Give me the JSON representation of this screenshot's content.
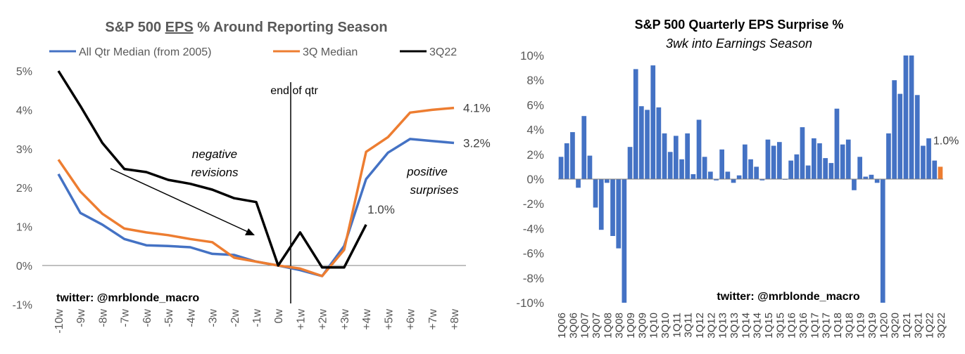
{
  "chart_data": [
    {
      "type": "line",
      "title_parts": [
        "S&P 500 ",
        "EPS",
        " % Around Reporting Season"
      ],
      "categories": [
        "-10w",
        "-9w",
        "-8w",
        "-7w",
        "-6w",
        "-5w",
        "-4w",
        "-3w",
        "-2w",
        "-1w",
        "0w",
        "+1w",
        "+2w",
        "+3w",
        "+4w",
        "+5w",
        "+6w",
        "+7w",
        "+8w"
      ],
      "ylim": [
        -1,
        5
      ],
      "yticks": [
        -1,
        0,
        1,
        2,
        3,
        4,
        5
      ],
      "ytick_labels": [
        "-1%",
        "0%",
        "1%",
        "2%",
        "3%",
        "4%",
        "5%"
      ],
      "grid": false,
      "legend_position": "top",
      "series": [
        {
          "name": "All Qtr Median (from 2005)",
          "color": "#4472C4",
          "values": [
            2.35,
            1.35,
            1.05,
            0.68,
            0.52,
            0.5,
            0.47,
            0.3,
            0.27,
            0.1,
            0.0,
            -0.12,
            -0.27,
            0.5,
            2.22,
            2.9,
            3.25,
            3.2,
            3.15
          ]
        },
        {
          "name": "3Q Median",
          "color": "#ED7D31",
          "values": [
            2.72,
            1.9,
            1.33,
            0.95,
            0.85,
            0.78,
            0.68,
            0.6,
            0.2,
            0.1,
            0.0,
            -0.08,
            -0.27,
            0.4,
            2.92,
            3.3,
            3.93,
            4.0,
            4.05
          ]
        },
        {
          "name": "3Q22",
          "color": "#000000",
          "values": [
            5.0,
            4.1,
            3.15,
            2.48,
            2.4,
            2.2,
            2.1,
            1.95,
            1.73,
            1.63,
            0.0,
            0.85,
            -0.05,
            -0.05,
            1.05,
            null,
            null,
            null,
            null
          ]
        }
      ],
      "end_labels": [
        {
          "text": "4.1%",
          "series": 1
        },
        {
          "text": "3.2%",
          "series": 0
        },
        {
          "text": "1.0%",
          "series": 2
        }
      ],
      "annotations": {
        "end_of_qtr": "end of qtr",
        "negative": [
          "negative",
          "revisions"
        ],
        "positive": [
          "positive",
          "surprises"
        ],
        "credit": "twitter: @mrblonde_macro"
      }
    },
    {
      "type": "bar",
      "title": "S&P 500 Quarterly EPS Surprise %",
      "subtitle": "3wk into Earnings Season",
      "ylim": [
        -10,
        10
      ],
      "yticks": [
        -10,
        -8,
        -6,
        -4,
        -2,
        0,
        2,
        4,
        6,
        8,
        10
      ],
      "ytick_labels": [
        "-10%",
        "-8%",
        "-6%",
        "-4%",
        "-2%",
        "0%",
        "2%",
        "4%",
        "6%",
        "8%",
        "10%"
      ],
      "grid": false,
      "bar_color": "#4472C4",
      "highlight_color": "#ED7D31",
      "xtick_labels": [
        "1Q06",
        "3Q06",
        "1Q07",
        "3Q07",
        "1Q08",
        "3Q08",
        "1Q09",
        "3Q09",
        "1Q10",
        "3Q10",
        "1Q11",
        "3Q11",
        "1Q12",
        "3Q12",
        "1Q13",
        "3Q13",
        "1Q14",
        "3Q14",
        "1Q15",
        "3Q15",
        "1Q16",
        "3Q16",
        "1Q17",
        "3Q17",
        "1Q18",
        "3Q18",
        "1Q19",
        "3Q19",
        "1Q20",
        "3Q20",
        "1Q21",
        "3Q21",
        "1Q22",
        "3Q22"
      ],
      "values": [
        1.8,
        2.9,
        3.8,
        -0.7,
        5.1,
        1.9,
        -2.3,
        -4.1,
        -0.3,
        -4.6,
        -5.6,
        -10,
        2.6,
        8.9,
        5.9,
        5.6,
        9.2,
        5.8,
        3.7,
        2.2,
        3.5,
        1.6,
        3.7,
        0.4,
        4.8,
        1.8,
        0.6,
        -0.1,
        2.4,
        0.6,
        -0.3,
        0.3,
        2.8,
        1.6,
        1.0,
        -0.1,
        3.2,
        2.7,
        3.0,
        -0.05,
        1.5,
        2.0,
        4.2,
        1.1,
        3.3,
        2.9,
        1.7,
        1.3,
        5.7,
        2.8,
        3.2,
        -0.9,
        1.8,
        0.2,
        0.35,
        -0.3,
        -10,
        3.7,
        8.0,
        6.9,
        10,
        10,
        6.8,
        2.7,
        3.3,
        1.5,
        1.0
      ],
      "last_value_label": "1.0%",
      "credit": "twitter: @mrblonde_macro"
    }
  ]
}
